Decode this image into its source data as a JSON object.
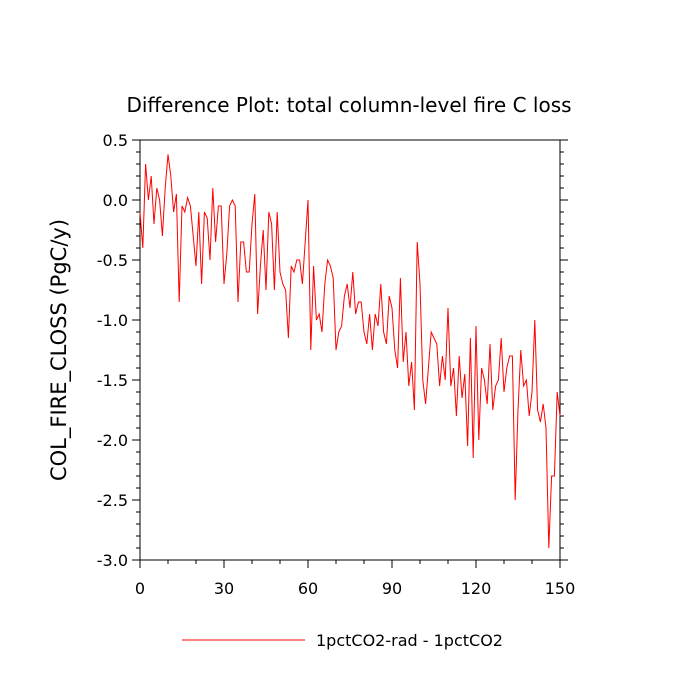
{
  "chart_data": {
    "type": "line",
    "title": "Difference Plot: total column-level fire C loss",
    "xlabel": "",
    "ylabel": "COL_FIRE_CLOSS  (PgC/y)",
    "xlim": [
      0,
      150
    ],
    "ylim": [
      -3.0,
      0.5
    ],
    "x_ticks": [
      "0",
      "30",
      "60",
      "90",
      "120",
      "150"
    ],
    "y_ticks": [
      "0.5",
      "0.0",
      "-0.5",
      "-1.0",
      "-1.5",
      "-2.0",
      "-2.5",
      "-3.0"
    ],
    "grid": false,
    "legend_position": "bottom-center",
    "series": [
      {
        "name": "1pctCO2-rad - 1pctCO2",
        "color": "#ff0000",
        "x": [
          0,
          1,
          2,
          3,
          4,
          5,
          6,
          7,
          8,
          9,
          10,
          11,
          12,
          13,
          14,
          15,
          16,
          17,
          18,
          19,
          20,
          21,
          22,
          23,
          24,
          25,
          26,
          27,
          28,
          29,
          30,
          31,
          32,
          33,
          34,
          35,
          36,
          37,
          38,
          39,
          40,
          41,
          42,
          43,
          44,
          45,
          46,
          47,
          48,
          49,
          50,
          51,
          52,
          53,
          54,
          55,
          56,
          57,
          58,
          59,
          60,
          61,
          62,
          63,
          64,
          65,
          66,
          67,
          68,
          69,
          70,
          71,
          72,
          73,
          74,
          75,
          76,
          77,
          78,
          79,
          80,
          81,
          82,
          83,
          84,
          85,
          86,
          87,
          88,
          89,
          90,
          91,
          92,
          93,
          94,
          95,
          96,
          97,
          98,
          99,
          100,
          101,
          102,
          103,
          104,
          105,
          106,
          107,
          108,
          109,
          110,
          111,
          112,
          113,
          114,
          115,
          116,
          117,
          118,
          119,
          120,
          121,
          122,
          123,
          124,
          125,
          126,
          127,
          128,
          129,
          130,
          131,
          132,
          133,
          134,
          135,
          136,
          137,
          138,
          139,
          140,
          141,
          142,
          143,
          144,
          145,
          146,
          147,
          148,
          149,
          150
        ],
        "values": [
          -0.1,
          -0.4,
          0.3,
          0.0,
          0.2,
          -0.2,
          0.1,
          0.0,
          -0.3,
          0.1,
          0.38,
          0.2,
          -0.1,
          0.05,
          -0.85,
          -0.05,
          -0.1,
          0.02,
          -0.05,
          -0.3,
          -0.55,
          -0.1,
          -0.7,
          -0.1,
          -0.15,
          -0.5,
          0.1,
          -0.35,
          -0.05,
          -0.05,
          -0.7,
          -0.45,
          -0.05,
          0.0,
          -0.05,
          -0.85,
          -0.35,
          -0.35,
          -0.6,
          -0.6,
          -0.2,
          0.05,
          -0.95,
          -0.55,
          -0.25,
          -0.75,
          -0.1,
          -0.2,
          -0.75,
          -0.1,
          -0.6,
          -0.7,
          -0.75,
          -1.15,
          -0.55,
          -0.6,
          -0.5,
          -0.5,
          -0.7,
          -0.35,
          0.0,
          -1.25,
          -0.55,
          -1.0,
          -0.95,
          -1.1,
          -0.7,
          -0.5,
          -0.55,
          -0.65,
          -1.25,
          -1.1,
          -1.05,
          -0.8,
          -0.7,
          -0.9,
          -0.6,
          -0.95,
          -0.85,
          -0.85,
          -1.1,
          -1.2,
          -0.95,
          -1.25,
          -0.95,
          -1.05,
          -0.7,
          -1.1,
          -1.2,
          -0.8,
          -0.9,
          -1.25,
          -1.4,
          -0.65,
          -1.35,
          -1.1,
          -1.55,
          -1.35,
          -1.75,
          -0.35,
          -0.7,
          -1.5,
          -1.7,
          -1.4,
          -1.1,
          -1.15,
          -1.2,
          -1.55,
          -1.3,
          -1.5,
          -0.9,
          -1.55,
          -1.4,
          -1.8,
          -1.3,
          -1.65,
          -1.45,
          -2.05,
          -1.15,
          -2.15,
          -1.05,
          -2.0,
          -1.4,
          -1.5,
          -1.7,
          -1.2,
          -1.75,
          -1.55,
          -1.5,
          -1.15,
          -1.6,
          -1.4,
          -1.3,
          -1.3,
          -2.5,
          -1.75,
          -1.25,
          -1.55,
          -1.5,
          -1.8,
          -1.6,
          -1.0,
          -1.75,
          -1.85,
          -1.7,
          -1.9,
          -2.9,
          -2.3,
          -2.3,
          -1.6,
          -1.8
        ]
      }
    ]
  }
}
